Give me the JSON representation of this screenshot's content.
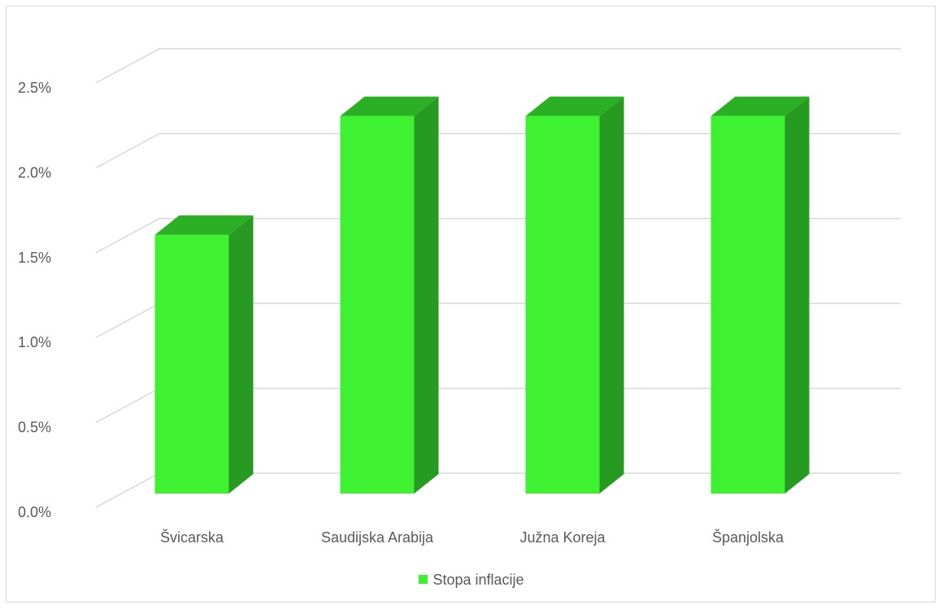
{
  "chart_data": {
    "type": "bar",
    "categories": [
      "Švicarska",
      "Saudijska Arabija",
      "Južna Koreja",
      "Španjolska"
    ],
    "series": [
      {
        "name": "Stopa inflacije",
        "values": [
          1.6,
          2.3,
          2.3,
          2.3
        ],
        "color": "#3ef231"
      }
    ],
    "y_ticks": [
      "0.0%",
      "0.5%",
      "1.0%",
      "1.5%",
      "2.0%",
      "2.5%"
    ],
    "ylim": [
      0,
      2.5
    ],
    "y_format": "percent",
    "grid": true,
    "legend_position": "bottom",
    "style": "3d-column",
    "colors": {
      "bar_front": "#3ef231",
      "bar_side": "#279a21",
      "bar_top": "#2bb025",
      "grid": "#d9d9d9",
      "text": "#595959"
    }
  }
}
